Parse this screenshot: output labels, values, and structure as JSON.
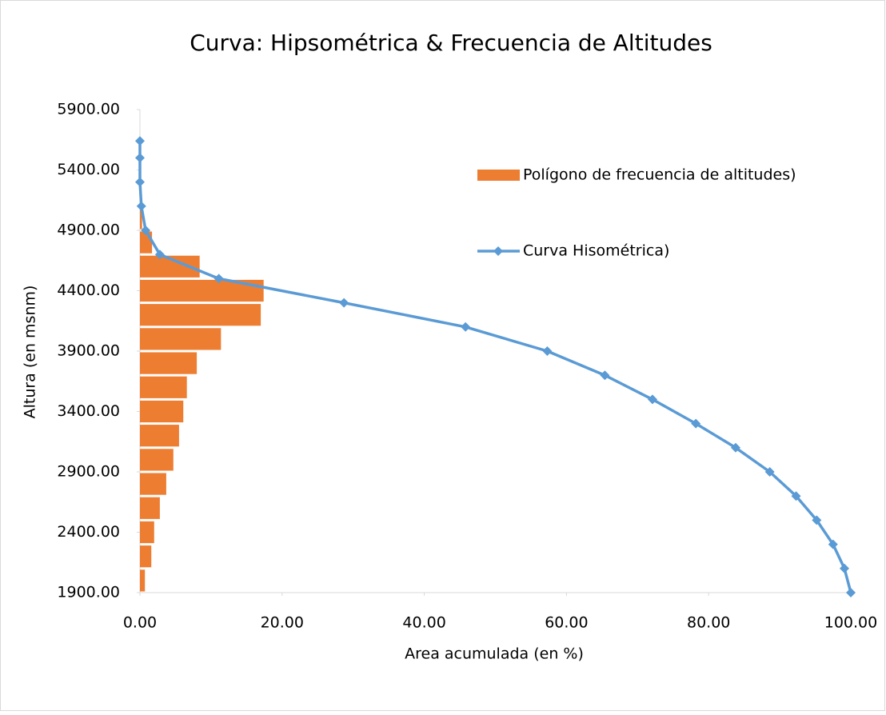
{
  "chart_data": {
    "type": "combo",
    "title": "Curva: Hipsométrica & Frecuencia de Altitudes",
    "xlabel": "Area acumulada (en %)",
    "ylabel": "Altura (en msnm)",
    "xlim": [
      0,
      100
    ],
    "ylim": [
      1900,
      5900
    ],
    "xticks": [
      {
        "value": 0,
        "label": "0.00"
      },
      {
        "value": 20,
        "label": "20.00"
      },
      {
        "value": 40,
        "label": "40.00"
      },
      {
        "value": 60,
        "label": "60.00"
      },
      {
        "value": 80,
        "label": "80.00"
      },
      {
        "value": 100,
        "label": "100.00"
      }
    ],
    "yticks": [
      {
        "value": 1900,
        "label": "1900.00"
      },
      {
        "value": 2400,
        "label": "2400.00"
      },
      {
        "value": 2900,
        "label": "2900.00"
      },
      {
        "value": 3400,
        "label": "3400.00"
      },
      {
        "value": 3900,
        "label": "3900.00"
      },
      {
        "value": 4400,
        "label": "4400.00"
      },
      {
        "value": 4900,
        "label": "4900.00"
      },
      {
        "value": 5400,
        "label": "5400.00"
      },
      {
        "value": 5900,
        "label": "5900.00"
      }
    ],
    "grid": false,
    "legend": "upper right",
    "series": [
      {
        "name": "Polígono de frecuencia de altitudes)",
        "type": "histogram",
        "color": "#ed7d31",
        "bins": [
          1900,
          2100,
          2300,
          2500,
          2700,
          2900,
          3100,
          3300,
          3500,
          3700,
          3900,
          4100,
          4300,
          4500,
          4700,
          4900,
          5100
        ],
        "values": [
          0.7,
          1.6,
          2.0,
          2.8,
          3.7,
          4.7,
          5.5,
          6.1,
          6.6,
          8.0,
          11.4,
          17.0,
          17.4,
          8.4,
          1.7,
          0.3
        ]
      },
      {
        "name": "Curva Hisométrica)",
        "type": "line",
        "color": "#5b9bd5",
        "x": [
          100,
          99.1,
          97.5,
          95.2,
          92.3,
          88.6,
          83.8,
          78.2,
          72.1,
          65.4,
          57.3,
          45.8,
          28.7,
          11.1,
          2.8,
          0.8,
          0.2,
          0,
          0,
          0
        ],
        "values": [
          1900,
          2100,
          2300,
          2500,
          2700,
          2900,
          3100,
          3300,
          3500,
          3700,
          3900,
          4100,
          4300,
          4500,
          4700,
          4900,
          5100,
          5300,
          5500,
          5640
        ]
      }
    ]
  }
}
